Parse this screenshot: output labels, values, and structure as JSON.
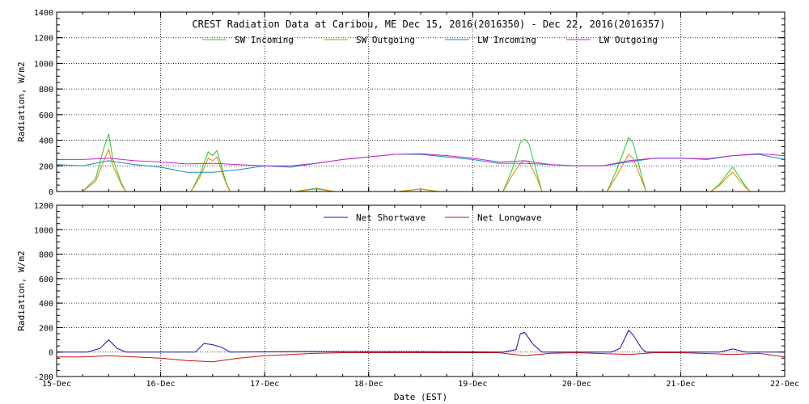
{
  "chart_data": [
    {
      "type": "line",
      "title": "CREST Radiation Data at Caribou, ME   Dec 15, 2016(2016350) - Dec 22, 2016(2016357)",
      "ylabel": "Radiation, W/m2",
      "xlabel": "",
      "ylim": [
        0,
        1400
      ],
      "yticks": [
        0,
        200,
        400,
        600,
        800,
        1000,
        1200,
        1400
      ],
      "xlim": [
        "2016-12-15",
        "2016-12-22"
      ],
      "x_tick_labels": [
        "15-Dec",
        "16-Dec",
        "17-Dec",
        "18-Dec",
        "19-Dec",
        "20-Dec",
        "21-Dec",
        "22-Dec"
      ],
      "grid": true,
      "legend_placement": "top",
      "series": [
        {
          "name": "SW Incoming",
          "color": "#22cc22",
          "x": [
            "2016-12-15 06:00",
            "2016-12-15 09:00",
            "2016-12-15 11:00",
            "2016-12-15 12:00",
            "2016-12-15 13:00",
            "2016-12-15 15:00",
            "2016-12-15 16:00",
            "2016-12-16 07:00",
            "2016-12-16 09:00",
            "2016-12-16 11:00",
            "2016-12-16 12:00",
            "2016-12-16 13:00",
            "2016-12-16 15:00",
            "2016-12-16 16:00",
            "2016-12-17 07:00",
            "2016-12-17 12:00",
            "2016-12-17 16:00",
            "2016-12-18 07:00",
            "2016-12-18 12:00",
            "2016-12-18 16:00",
            "2016-12-19 07:00",
            "2016-12-19 09:00",
            "2016-12-19 11:00",
            "2016-12-19 12:00",
            "2016-12-19 13:00",
            "2016-12-19 15:00",
            "2016-12-19 16:00",
            "2016-12-20 07:00",
            "2016-12-20 09:00",
            "2016-12-20 11:00",
            "2016-12-20 12:00",
            "2016-12-20 13:00",
            "2016-12-20 15:00",
            "2016-12-20 16:00",
            "2016-12-21 07:00",
            "2016-12-21 09:00",
            "2016-12-21 11:00",
            "2016-12-21 12:00",
            "2016-12-21 13:00",
            "2016-12-21 15:00",
            "2016-12-21 16:00"
          ],
          "y": [
            0,
            100,
            350,
            450,
            250,
            60,
            0,
            0,
            130,
            310,
            280,
            320,
            80,
            0,
            0,
            25,
            0,
            0,
            20,
            0,
            0,
            160,
            380,
            410,
            370,
            120,
            0,
            0,
            150,
            330,
            420,
            380,
            120,
            0,
            0,
            60,
            150,
            190,
            140,
            40,
            0
          ]
        },
        {
          "name": "SW Outgoing",
          "color": "#dd8800",
          "x": [
            "2016-12-15 06:00",
            "2016-12-15 09:00",
            "2016-12-15 11:00",
            "2016-12-15 12:00",
            "2016-12-15 13:00",
            "2016-12-15 15:00",
            "2016-12-15 16:00",
            "2016-12-16 07:00",
            "2016-12-16 09:00",
            "2016-12-16 11:00",
            "2016-12-16 12:00",
            "2016-12-16 13:00",
            "2016-12-16 15:00",
            "2016-12-16 16:00",
            "2016-12-17 07:00",
            "2016-12-17 12:00",
            "2016-12-17 16:00",
            "2016-12-18 07:00",
            "2016-12-18 12:00",
            "2016-12-18 16:00",
            "2016-12-19 07:00",
            "2016-12-19 09:00",
            "2016-12-19 11:00",
            "2016-12-19 12:00",
            "2016-12-19 13:00",
            "2016-12-19 15:00",
            "2016-12-19 16:00",
            "2016-12-20 07:00",
            "2016-12-20 09:00",
            "2016-12-20 11:00",
            "2016-12-20 12:00",
            "2016-12-20 13:00",
            "2016-12-20 15:00",
            "2016-12-20 16:00",
            "2016-12-21 07:00",
            "2016-12-21 09:00",
            "2016-12-21 11:00",
            "2016-12-21 12:00",
            "2016-12-21 13:00",
            "2016-12-21 15:00",
            "2016-12-21 16:00"
          ],
          "y": [
            0,
            80,
            250,
            330,
            200,
            50,
            0,
            0,
            110,
            260,
            240,
            270,
            70,
            0,
            0,
            20,
            0,
            0,
            20,
            0,
            0,
            120,
            220,
            240,
            230,
            90,
            0,
            0,
            110,
            230,
            290,
            260,
            90,
            0,
            0,
            50,
            120,
            150,
            110,
            30,
            0
          ]
        },
        {
          "name": "LW Incoming",
          "color": "#1188cc",
          "x": [
            "2016-12-15 00:00",
            "2016-12-15 06:00",
            "2016-12-15 12:00",
            "2016-12-15 18:00",
            "2016-12-16 00:00",
            "2016-12-16 06:00",
            "2016-12-16 12:00",
            "2016-12-16 18:00",
            "2016-12-17 00:00",
            "2016-12-17 06:00",
            "2016-12-17 12:00",
            "2016-12-17 18:00",
            "2016-12-18 00:00",
            "2016-12-18 06:00",
            "2016-12-18 12:00",
            "2016-12-18 18:00",
            "2016-12-19 00:00",
            "2016-12-19 06:00",
            "2016-12-19 12:00",
            "2016-12-19 18:00",
            "2016-12-20 00:00",
            "2016-12-20 06:00",
            "2016-12-20 12:00",
            "2016-12-20 18:00",
            "2016-12-21 00:00",
            "2016-12-21 06:00",
            "2016-12-21 12:00",
            "2016-12-21 18:00",
            "2016-12-22 00:00"
          ],
          "y": [
            210,
            200,
            240,
            210,
            190,
            150,
            150,
            170,
            200,
            190,
            220,
            250,
            270,
            290,
            290,
            270,
            250,
            220,
            220,
            210,
            200,
            200,
            230,
            260,
            260,
            250,
            280,
            290,
            250
          ]
        },
        {
          "name": "LW Outgoing",
          "color": "#cc22cc",
          "x": [
            "2016-12-15 00:00",
            "2016-12-15 06:00",
            "2016-12-15 12:00",
            "2016-12-15 18:00",
            "2016-12-16 00:00",
            "2016-12-16 06:00",
            "2016-12-16 12:00",
            "2016-12-16 18:00",
            "2016-12-17 00:00",
            "2016-12-17 06:00",
            "2016-12-17 12:00",
            "2016-12-17 18:00",
            "2016-12-18 00:00",
            "2016-12-18 06:00",
            "2016-12-18 12:00",
            "2016-12-18 18:00",
            "2016-12-19 00:00",
            "2016-12-19 06:00",
            "2016-12-19 12:00",
            "2016-12-19 18:00",
            "2016-12-20 00:00",
            "2016-12-20 06:00",
            "2016-12-20 12:00",
            "2016-12-20 18:00",
            "2016-12-21 00:00",
            "2016-12-21 06:00",
            "2016-12-21 12:00",
            "2016-12-21 18:00",
            "2016-12-22 00:00"
          ],
          "y": [
            250,
            250,
            260,
            240,
            230,
            215,
            220,
            210,
            200,
            200,
            220,
            250,
            270,
            290,
            295,
            280,
            260,
            230,
            240,
            210,
            200,
            200,
            240,
            260,
            260,
            255,
            280,
            295,
            280
          ]
        }
      ]
    },
    {
      "type": "line",
      "title": "",
      "ylabel": "Radiation, W/m2",
      "xlabel": "Date (EST)",
      "ylim": [
        -200,
        1200
      ],
      "yticks": [
        -200,
        0,
        200,
        400,
        600,
        800,
        1000,
        1200
      ],
      "xlim": [
        "2016-12-15",
        "2016-12-22"
      ],
      "x_tick_labels": [
        "15-Dec",
        "16-Dec",
        "17-Dec",
        "18-Dec",
        "19-Dec",
        "20-Dec",
        "21-Dec",
        "22-Dec"
      ],
      "grid": true,
      "legend_placement": "top",
      "series": [
        {
          "name": "Net Shortwave",
          "color": "#1111aa",
          "x": [
            "2016-12-15 00:00",
            "2016-12-15 07:00",
            "2016-12-15 10:00",
            "2016-12-15 12:00",
            "2016-12-15 14:00",
            "2016-12-15 16:00",
            "2016-12-16 08:00",
            "2016-12-16 10:00",
            "2016-12-16 12:00",
            "2016-12-16 14:00",
            "2016-12-16 16:00",
            "2016-12-17 12:00",
            "2016-12-18 12:00",
            "2016-12-19 07:00",
            "2016-12-19 10:00",
            "2016-12-19 11:00",
            "2016-12-19 12:00",
            "2016-12-19 14:00",
            "2016-12-19 16:00",
            "2016-12-20 08:00",
            "2016-12-20 10:00",
            "2016-12-20 12:00",
            "2016-12-20 13:00",
            "2016-12-20 15:00",
            "2016-12-20 16:00",
            "2016-12-21 09:00",
            "2016-12-21 12:00",
            "2016-12-21 15:00",
            "2016-12-22 00:00"
          ],
          "y": [
            0,
            0,
            30,
            100,
            30,
            0,
            0,
            70,
            60,
            40,
            0,
            5,
            5,
            0,
            20,
            150,
            160,
            60,
            0,
            0,
            30,
            180,
            140,
            30,
            0,
            0,
            25,
            0,
            0
          ]
        },
        {
          "name": "Net Longwave",
          "color": "#cc1111",
          "x": [
            "2016-12-15 00:00",
            "2016-12-15 06:00",
            "2016-12-15 12:00",
            "2016-12-15 18:00",
            "2016-12-16 00:00",
            "2016-12-16 06:00",
            "2016-12-16 12:00",
            "2016-12-16 18:00",
            "2016-12-17 00:00",
            "2016-12-17 06:00",
            "2016-12-17 12:00",
            "2016-12-17 18:00",
            "2016-12-18 00:00",
            "2016-12-18 12:00",
            "2016-12-19 00:00",
            "2016-12-19 06:00",
            "2016-12-19 12:00",
            "2016-12-19 18:00",
            "2016-12-20 00:00",
            "2016-12-20 12:00",
            "2016-12-20 18:00",
            "2016-12-21 00:00",
            "2016-12-21 12:00",
            "2016-12-21 18:00",
            "2016-12-22 00:00"
          ],
          "y": [
            -40,
            -40,
            -30,
            -40,
            -50,
            -70,
            -80,
            -50,
            -30,
            -20,
            -10,
            -5,
            -5,
            -5,
            -5,
            -5,
            -30,
            -10,
            -5,
            -20,
            -5,
            -5,
            -20,
            -10,
            -40
          ]
        }
      ]
    }
  ]
}
